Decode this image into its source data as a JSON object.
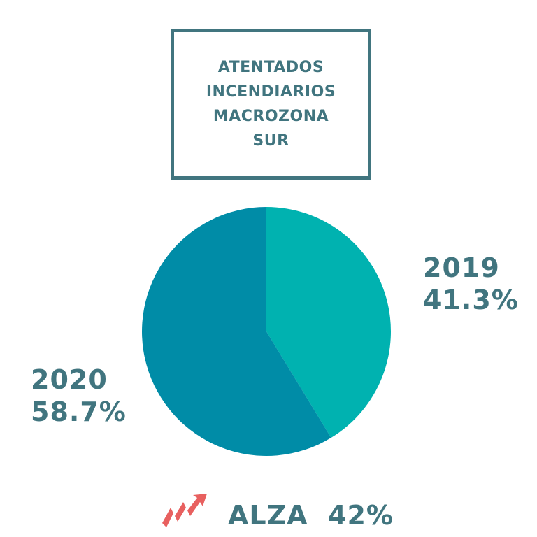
{
  "title": {
    "lines": [
      "ATENTADOS",
      "INCENDIARIOS",
      "MACROZONA",
      "SUR"
    ]
  },
  "chart_data": {
    "type": "pie",
    "title": "ATENTADOS INCENDIARIOS MACROZONA SUR",
    "slices": [
      {
        "name": "2019",
        "value": 41.3,
        "label": "41.3%",
        "color": "#00b2b0"
      },
      {
        "name": "2020",
        "value": 58.7,
        "label": "58.7%",
        "color": "#008ca7"
      }
    ]
  },
  "footer": {
    "text": "ALZA  42%",
    "icon": "trend-up-arrow-icon",
    "icon_color": "#e8605f"
  }
}
